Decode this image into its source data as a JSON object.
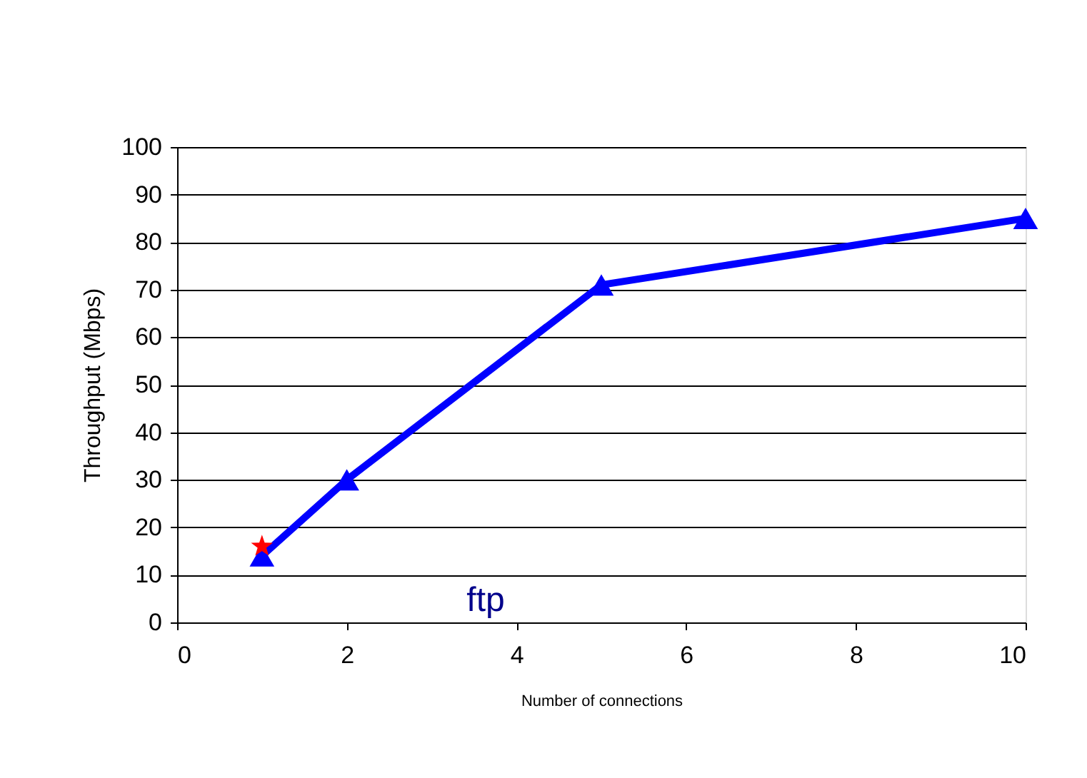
{
  "chart_data": {
    "type": "line",
    "xlabel": "Number of connections",
    "ylabel": "Throughput (Mbps)",
    "x": [
      1,
      2,
      5,
      10
    ],
    "series": [
      {
        "color": "#0000ff",
        "values": [
          14,
          30,
          71,
          85
        ],
        "marker": "triangle",
        "line_style": "solid"
      },
      {
        "type": "scatter",
        "color": "#ff0000",
        "x": [
          1
        ],
        "values": [
          16
        ],
        "marker": "star"
      }
    ],
    "xlim": [
      0,
      10
    ],
    "xticks": [
      0,
      2,
      4,
      6,
      8,
      10
    ],
    "ylim": [
      0,
      100
    ],
    "yticks": [
      0,
      10,
      20,
      30,
      40,
      50,
      60,
      70,
      80,
      90,
      100
    ],
    "grid": "y",
    "annotations": [
      "ftp"
    ]
  }
}
